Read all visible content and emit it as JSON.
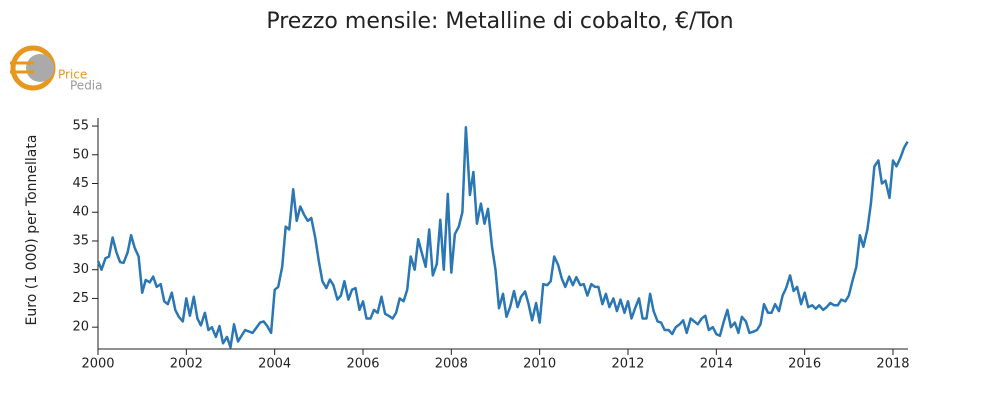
{
  "chart_data": {
    "type": "line",
    "title": "Prezzo mensile: Metalline di cobalto, €/Ton",
    "logo": {
      "line1": "Price",
      "line2": "Pedia"
    },
    "y_label": "Euro (1 000) per Tonnellata",
    "xlim": [
      2000,
      2018.34
    ],
    "xticks": [
      2000,
      2002,
      2004,
      2006,
      2008,
      2010,
      2012,
      2014,
      2016,
      2018
    ],
    "ylim": [
      16.2,
      56.4
    ],
    "yticks": [
      20,
      25,
      30,
      35,
      40,
      45,
      50,
      55
    ],
    "grid": false,
    "series": [
      {
        "color": "#2a77b4",
        "x": [
          2000.0,
          2000.08,
          2000.17,
          2000.25,
          2000.33,
          2000.42,
          2000.5,
          2000.58,
          2000.67,
          2000.75,
          2000.83,
          2000.92,
          2001.0,
          2001.08,
          2001.17,
          2001.25,
          2001.33,
          2001.42,
          2001.5,
          2001.58,
          2001.67,
          2001.75,
          2001.83,
          2001.92,
          2002.0,
          2002.08,
          2002.17,
          2002.25,
          2002.33,
          2002.42,
          2002.5,
          2002.58,
          2002.67,
          2002.75,
          2002.83,
          2002.92,
          2003.0,
          2003.08,
          2003.17,
          2003.33,
          2003.5,
          2003.67,
          2003.75,
          2003.83,
          2003.92,
          2004.0,
          2004.08,
          2004.17,
          2004.25,
          2004.33,
          2004.42,
          2004.5,
          2004.58,
          2004.67,
          2004.75,
          2004.83,
          2004.92,
          2005.0,
          2005.08,
          2005.17,
          2005.25,
          2005.33,
          2005.42,
          2005.5,
          2005.58,
          2005.67,
          2005.75,
          2005.83,
          2005.92,
          2006.0,
          2006.08,
          2006.17,
          2006.25,
          2006.33,
          2006.42,
          2006.5,
          2006.58,
          2006.67,
          2006.75,
          2006.83,
          2006.92,
          2007.0,
          2007.08,
          2007.17,
          2007.25,
          2007.33,
          2007.42,
          2007.5,
          2007.58,
          2007.67,
          2007.75,
          2007.83,
          2007.92,
          2008.0,
          2008.08,
          2008.17,
          2008.25,
          2008.33,
          2008.42,
          2008.5,
          2008.58,
          2008.67,
          2008.75,
          2008.83,
          2008.92,
          2009.0,
          2009.08,
          2009.17,
          2009.25,
          2009.33,
          2009.42,
          2009.5,
          2009.58,
          2009.67,
          2009.75,
          2009.83,
          2009.92,
          2010.0,
          2010.08,
          2010.17,
          2010.25,
          2010.33,
          2010.42,
          2010.5,
          2010.58,
          2010.67,
          2010.75,
          2010.83,
          2010.92,
          2011.0,
          2011.08,
          2011.17,
          2011.25,
          2011.33,
          2011.42,
          2011.5,
          2011.58,
          2011.67,
          2011.75,
          2011.83,
          2011.92,
          2012.0,
          2012.08,
          2012.17,
          2012.25,
          2012.33,
          2012.42,
          2012.5,
          2012.58,
          2012.67,
          2012.75,
          2012.83,
          2012.92,
          2013.0,
          2013.08,
          2013.17,
          2013.25,
          2013.33,
          2013.42,
          2013.5,
          2013.58,
          2013.67,
          2013.75,
          2013.83,
          2013.92,
          2014.0,
          2014.08,
          2014.17,
          2014.25,
          2014.33,
          2014.42,
          2014.5,
          2014.58,
          2014.67,
          2014.75,
          2014.83,
          2014.92,
          2015.0,
          2015.08,
          2015.17,
          2015.25,
          2015.33,
          2015.42,
          2015.5,
          2015.58,
          2015.67,
          2015.75,
          2015.83,
          2015.92,
          2016.0,
          2016.08,
          2016.17,
          2016.25,
          2016.33,
          2016.42,
          2016.5,
          2016.58,
          2016.67,
          2016.75,
          2016.83,
          2016.92,
          2017.0,
          2017.08,
          2017.17,
          2017.25,
          2017.33,
          2017.42,
          2017.5,
          2017.58,
          2017.67,
          2017.75,
          2017.83,
          2017.92,
          2018.0,
          2018.08,
          2018.17,
          2018.25,
          2018.33
        ],
        "values": [
          31.5,
          30,
          32,
          32.3,
          35.6,
          33,
          31.3,
          31.2,
          33,
          36,
          33.8,
          32.3,
          26,
          28.2,
          27.8,
          28.8,
          27,
          27.5,
          24.5,
          24,
          26,
          23,
          21.8,
          21,
          25,
          22,
          25.3,
          21.5,
          20.3,
          22.5,
          19.5,
          20,
          18.3,
          20.2,
          17.2,
          18.3,
          16.5,
          20.5,
          17.5,
          19.5,
          19,
          20.8,
          21,
          20.2,
          19,
          26.5,
          27,
          30.5,
          37.5,
          37,
          44,
          38.5,
          41,
          39.5,
          38.5,
          39,
          35.5,
          31.5,
          28,
          26.8,
          28.3,
          27.3,
          24.8,
          25.5,
          28,
          24.8,
          26.5,
          26.8,
          23,
          24.5,
          21.5,
          21.5,
          23,
          22.5,
          25.3,
          22.3,
          22,
          21.5,
          22.5,
          25,
          24.5,
          26.5,
          32.3,
          30,
          35.3,
          33,
          30.5,
          37,
          29,
          31,
          38.7,
          30,
          43.2,
          29.5,
          36.2,
          37.5,
          40,
          54.8,
          43,
          47,
          38,
          41.5,
          38,
          40.6,
          34,
          30,
          23.3,
          25.8,
          21.8,
          23.5,
          26.3,
          23.5,
          25.3,
          26.2,
          24,
          21.2,
          24.2,
          20.8,
          27.5,
          27.3,
          28,
          32.3,
          30.8,
          28.5,
          27,
          28.8,
          27.3,
          28.7,
          27.3,
          27.5,
          25.5,
          27.5,
          27,
          27,
          24,
          25.8,
          23.5,
          25,
          22.8,
          24.8,
          22.5,
          24.5,
          21.5,
          23.5,
          25,
          21.5,
          21.5,
          25.8,
          22.8,
          21,
          20.8,
          19.5,
          19.5,
          18.8,
          20,
          20.5,
          21.2,
          19,
          21.5,
          21,
          20.5,
          21.5,
          22,
          19.5,
          20,
          18.8,
          18.5,
          21,
          23,
          20,
          20.8,
          19,
          21.8,
          21,
          19,
          19.2,
          19.5,
          20.5,
          24,
          22.5,
          22.5,
          24,
          22.8,
          25.5,
          26.8,
          29,
          26.3,
          27,
          24,
          26,
          23.5,
          23.8,
          23.2,
          23.8,
          23,
          23.5,
          24.2,
          23.8,
          23.8,
          24.8,
          24.5,
          25.5,
          28,
          30.5,
          36,
          34,
          37,
          41.5,
          48,
          49,
          45,
          45.5,
          42.5,
          49,
          48,
          49.5,
          51.2,
          52.3
        ]
      }
    ]
  }
}
